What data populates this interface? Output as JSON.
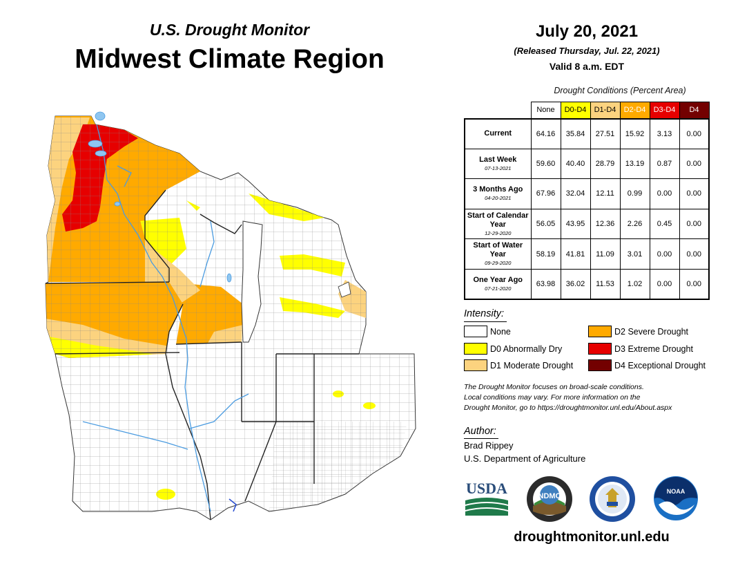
{
  "header": {
    "subtitle": "U.S. Drought Monitor",
    "title": "Midwest Climate Region"
  },
  "date": {
    "main": "July 20, 2021",
    "released": "(Released Thursday, Jul. 22, 2021)",
    "valid": "Valid 8 a.m. EDT"
  },
  "table": {
    "caption": "Drought Conditions (Percent Area)",
    "columns": [
      {
        "label": "None",
        "color": "#ffffff",
        "text_color": "#000000"
      },
      {
        "label": "D0-D4",
        "color": "#ffff00",
        "text_color": "#000000"
      },
      {
        "label": "D1-D4",
        "color": "#fcd37f",
        "text_color": "#000000"
      },
      {
        "label": "D2-D4",
        "color": "#ffaa00",
        "text_color": "#ffffff"
      },
      {
        "label": "D3-D4",
        "color": "#e60000",
        "text_color": "#ffffff"
      },
      {
        "label": "D4",
        "color": "#730000",
        "text_color": "#ffffff"
      }
    ],
    "rows": [
      {
        "label": "Current",
        "sub": "",
        "values": [
          "64.16",
          "35.84",
          "27.51",
          "15.92",
          "3.13",
          "0.00"
        ]
      },
      {
        "label": "Last Week",
        "sub": "07-13-2021",
        "values": [
          "59.60",
          "40.40",
          "28.79",
          "13.19",
          "0.87",
          "0.00"
        ]
      },
      {
        "label": "3 Months Ago",
        "sub": "04-20-2021",
        "values": [
          "67.96",
          "32.04",
          "12.11",
          "0.99",
          "0.00",
          "0.00"
        ]
      },
      {
        "label": "Start of Calendar Year",
        "sub": "12-29-2020",
        "values": [
          "56.05",
          "43.95",
          "12.36",
          "2.26",
          "0.45",
          "0.00"
        ]
      },
      {
        "label": "Start of Water Year",
        "sub": "09-29-2020",
        "values": [
          "58.19",
          "41.81",
          "11.09",
          "3.01",
          "0.00",
          "0.00"
        ]
      },
      {
        "label": "One Year Ago",
        "sub": "07-21-2020",
        "values": [
          "63.98",
          "36.02",
          "11.53",
          "1.02",
          "0.00",
          "0.00"
        ]
      }
    ]
  },
  "legend": {
    "title": "Intensity:",
    "items": [
      {
        "label": "None",
        "color": "#ffffff"
      },
      {
        "label": "D0 Abnormally Dry",
        "color": "#ffff00"
      },
      {
        "label": "D1 Moderate Drought",
        "color": "#fcd37f"
      },
      {
        "label": "D2 Severe Drought",
        "color": "#ffaa00"
      },
      {
        "label": "D3 Extreme Drought",
        "color": "#e60000"
      },
      {
        "label": "D4 Exceptional Drought",
        "color": "#730000"
      }
    ]
  },
  "note": {
    "line1": "The Drought Monitor focuses on broad-scale conditions.",
    "line2": "Local conditions may vary. For more information on the",
    "line3": "Drought Monitor, go to https://droughtmonitor.unl.edu/About.aspx"
  },
  "author": {
    "heading": "Author:",
    "name": "Brad Rippey",
    "org": "U.S. Department of Agriculture"
  },
  "logos": {
    "usda": "USDA",
    "ndmc": "NDMC",
    "noaa": "NOAA"
  },
  "url": "droughtmonitor.unl.edu",
  "map_colors": {
    "water": "#8fc6f0",
    "border": "#555555"
  }
}
